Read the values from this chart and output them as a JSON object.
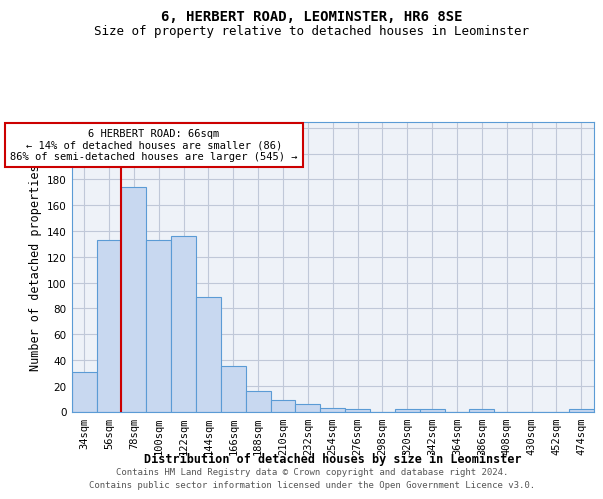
{
  "title": "6, HERBERT ROAD, LEOMINSTER, HR6 8SE",
  "subtitle": "Size of property relative to detached houses in Leominster",
  "xlabel": "Distribution of detached houses by size in Leominster",
  "ylabel": "Number of detached properties",
  "footer_line1": "Contains HM Land Registry data © Crown copyright and database right 2024.",
  "footer_line2": "Contains public sector information licensed under the Open Government Licence v3.0.",
  "categories": [
    "34sqm",
    "56sqm",
    "78sqm",
    "100sqm",
    "122sqm",
    "144sqm",
    "166sqm",
    "188sqm",
    "210sqm",
    "232sqm",
    "254sqm",
    "276sqm",
    "298sqm",
    "320sqm",
    "342sqm",
    "364sqm",
    "386sqm",
    "408sqm",
    "430sqm",
    "452sqm",
    "474sqm"
  ],
  "values": [
    31,
    133,
    174,
    133,
    136,
    89,
    35,
    16,
    9,
    6,
    3,
    2,
    0,
    2,
    2,
    0,
    2,
    0,
    0,
    0,
    2
  ],
  "bar_color": "#c8d8f0",
  "bar_edge_color": "#5b9bd5",
  "red_line_x": 1.5,
  "annotation_text": "6 HERBERT ROAD: 66sqm\n← 14% of detached houses are smaller (86)\n86% of semi-detached houses are larger (545) →",
  "annotation_box_color": "white",
  "annotation_box_edge_color": "#cc0000",
  "red_line_color": "#cc0000",
  "ylim": [
    0,
    225
  ],
  "yticks": [
    0,
    20,
    40,
    60,
    80,
    100,
    120,
    140,
    160,
    180,
    200,
    220
  ],
  "grid_color": "#c0c8d8",
  "background_color": "#eef2f8",
  "title_fontsize": 10,
  "subtitle_fontsize": 9,
  "axis_label_fontsize": 8.5,
  "tick_fontsize": 7.5,
  "annotation_fontsize": 7.5,
  "footer_fontsize": 6.5
}
